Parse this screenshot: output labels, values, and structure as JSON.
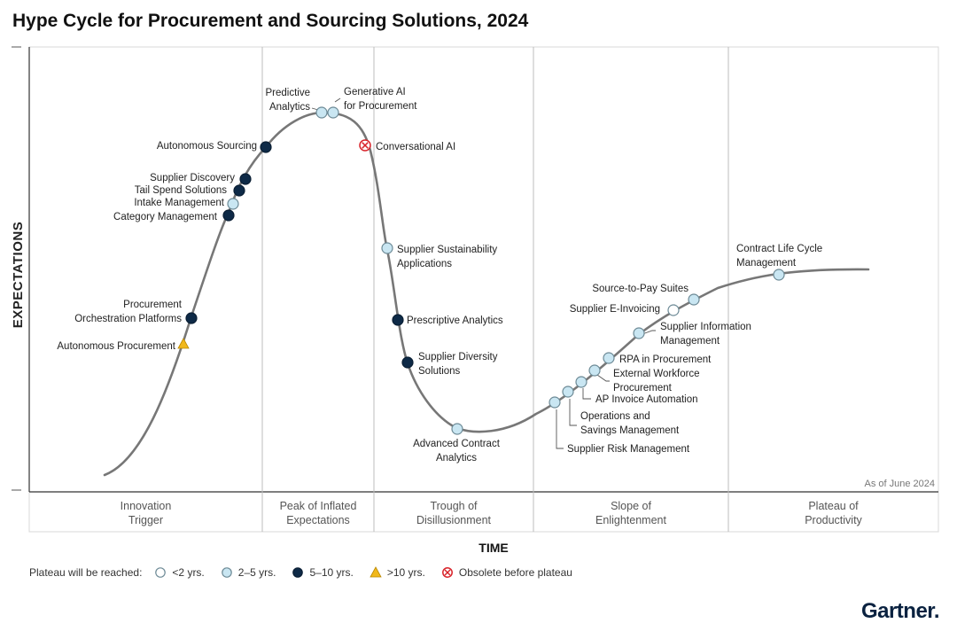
{
  "title": "Hype Cycle for Procurement and Sourcing Solutions, 2024",
  "y_axis_label": "EXPECTATIONS",
  "x_axis_label": "TIME",
  "as_of": "As of June 2024",
  "phases": [
    {
      "label": "Innovation\nTrigger"
    },
    {
      "label": "Peak of Inflated\nExpectations"
    },
    {
      "label": "Trough of\nDisillusionment"
    },
    {
      "label": "Slope of\nEnlightenment"
    },
    {
      "label": "Plateau of\nProductivity"
    }
  ],
  "colors": {
    "lt2": "#ffffff",
    "y2to5": "#c9e6f2",
    "y5to10": "#0e2a47",
    "gt10": "#f1b81b",
    "obsolete": "#d8232a",
    "curve": "#777777"
  },
  "legend": {
    "lead": "Plateau will be reached:",
    "items": [
      {
        "key": "lt2",
        "label": "<2 yrs."
      },
      {
        "key": "y2to5",
        "label": "2–5 yrs."
      },
      {
        "key": "y5to10",
        "label": "5–10 yrs."
      },
      {
        "key": "gt10",
        "label": ">10 yrs."
      },
      {
        "key": "obsolete",
        "label": "Obsolete before plateau"
      }
    ]
  },
  "technologies": [
    {
      "name": "Autonomous Procurement",
      "category": "gt10",
      "phase": "Innovation Trigger"
    },
    {
      "name": "Procurement Orchestration Platforms",
      "category": "y5to10",
      "phase": "Innovation Trigger"
    },
    {
      "name": "Category Management",
      "category": "y5to10",
      "phase": "Innovation Trigger"
    },
    {
      "name": "Intake Management",
      "category": "y2to5",
      "phase": "Innovation Trigger"
    },
    {
      "name": "Tail Spend Solutions",
      "category": "y5to10",
      "phase": "Innovation Trigger"
    },
    {
      "name": "Supplier Discovery",
      "category": "y5to10",
      "phase": "Innovation Trigger"
    },
    {
      "name": "Autonomous Sourcing",
      "category": "y5to10",
      "phase": "Peak of Inflated Expectations"
    },
    {
      "name": "Predictive Analytics",
      "category": "y2to5",
      "phase": "Peak of Inflated Expectations"
    },
    {
      "name": "Generative AI for Procurement",
      "category": "y2to5",
      "phase": "Peak of Inflated Expectations"
    },
    {
      "name": "Conversational AI",
      "category": "obsolete",
      "phase": "Peak of Inflated Expectations"
    },
    {
      "name": "Supplier Sustainability Applications",
      "category": "y2to5",
      "phase": "Trough of Disillusionment"
    },
    {
      "name": "Prescriptive Analytics",
      "category": "y5to10",
      "phase": "Trough of Disillusionment"
    },
    {
      "name": "Supplier Diversity Solutions",
      "category": "y5to10",
      "phase": "Trough of Disillusionment"
    },
    {
      "name": "Advanced Contract Analytics",
      "category": "y2to5",
      "phase": "Trough of Disillusionment"
    },
    {
      "name": "Supplier Risk Management",
      "category": "y2to5",
      "phase": "Slope of Enlightenment"
    },
    {
      "name": "Operations and Savings Management",
      "category": "y2to5",
      "phase": "Slope of Enlightenment"
    },
    {
      "name": "AP Invoice Automation",
      "category": "y2to5",
      "phase": "Slope of Enlightenment"
    },
    {
      "name": "External Workforce Procurement",
      "category": "y2to5",
      "phase": "Slope of Enlightenment"
    },
    {
      "name": "RPA in Procurement",
      "category": "y2to5",
      "phase": "Slope of Enlightenment"
    },
    {
      "name": "Supplier Information Management",
      "category": "y2to5",
      "phase": "Slope of Enlightenment"
    },
    {
      "name": "Supplier E-Invoicing",
      "category": "lt2",
      "phase": "Slope of Enlightenment"
    },
    {
      "name": "Source-to-Pay Suites",
      "category": "y2to5",
      "phase": "Slope of Enlightenment"
    },
    {
      "name": "Contract Life Cycle Management",
      "category": "y2to5",
      "phase": "Slope of Enlightenment"
    }
  ],
  "logo": "Gartner"
}
